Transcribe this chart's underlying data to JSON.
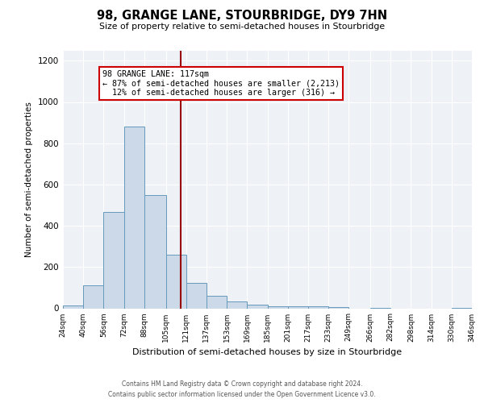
{
  "title": "98, GRANGE LANE, STOURBRIDGE, DY9 7HN",
  "subtitle": "Size of property relative to semi-detached houses in Stourbridge",
  "xlabel": "Distribution of semi-detached houses by size in Stourbridge",
  "ylabel": "Number of semi-detached properties",
  "bin_labels": [
    "24sqm",
    "40sqm",
    "56sqm",
    "72sqm",
    "88sqm",
    "105sqm",
    "121sqm",
    "137sqm",
    "153sqm",
    "169sqm",
    "185sqm",
    "201sqm",
    "217sqm",
    "233sqm",
    "249sqm",
    "266sqm",
    "282sqm",
    "298sqm",
    "314sqm",
    "330sqm",
    "346sqm"
  ],
  "bin_edges": [
    24,
    40,
    56,
    72,
    88,
    105,
    121,
    137,
    153,
    169,
    185,
    201,
    217,
    233,
    249,
    266,
    282,
    298,
    314,
    330,
    346
  ],
  "bar_heights": [
    15,
    110,
    465,
    880,
    550,
    260,
    125,
    60,
    33,
    18,
    10,
    8,
    10,
    5,
    0,
    3,
    0,
    0,
    0,
    2
  ],
  "bar_color": "#ccd9e8",
  "bar_edge_color": "#6699bb",
  "property_size": 117,
  "pct_smaller": 87,
  "n_smaller": 2213,
  "pct_larger": 12,
  "n_larger": 316,
  "vline_color": "#990000",
  "annotation_box_edge_color": "#cc0000",
  "ylim": [
    0,
    1250
  ],
  "yticks": [
    0,
    200,
    400,
    600,
    800,
    1000,
    1200
  ],
  "footer_line1": "Contains HM Land Registry data © Crown copyright and database right 2024.",
  "footer_line2": "Contains public sector information licensed under the Open Government Licence v3.0.",
  "bg_color": "#eef2f7"
}
